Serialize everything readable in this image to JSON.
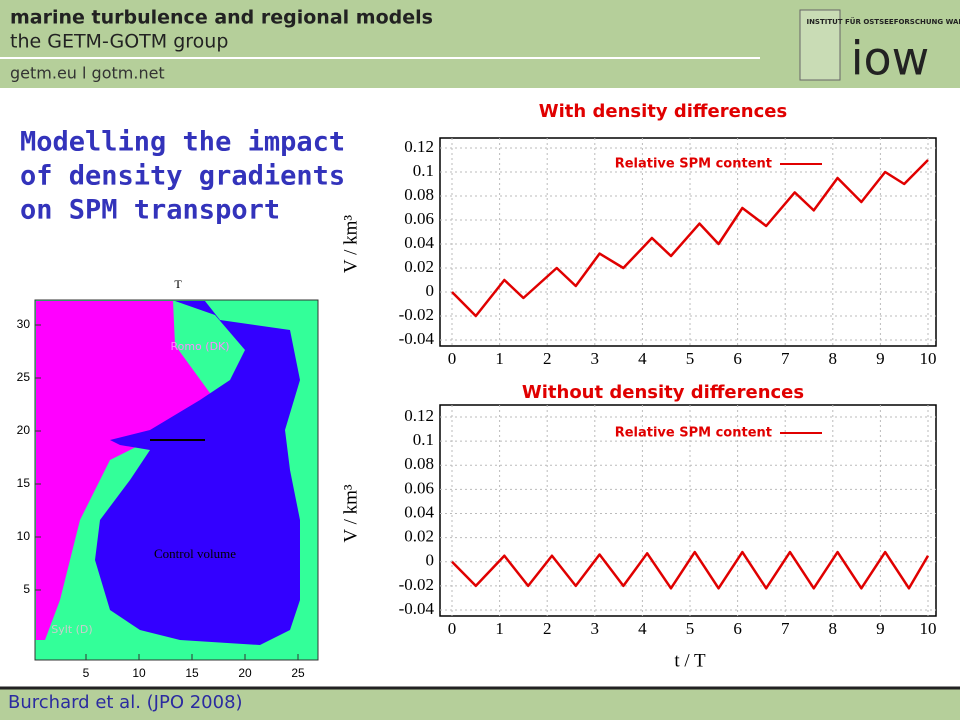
{
  "header": {
    "title": "marine turbulence and regional models",
    "subtitle": "the GETM-GOTM group",
    "links": "getm.eu l gotm.net",
    "logo_institute": "INSTITUT FÜR OSTSEEFORSCHUNG WARNEMÜNDE",
    "logo_name": "iow"
  },
  "slide_title": [
    "Modelling the impact",
    "of density gradients",
    "on SPM transport"
  ],
  "map": {
    "top_label": "T",
    "labels": [
      "Romo (DK)",
      "Sylt (D)",
      "Control volume"
    ],
    "xticks": [
      5,
      10,
      15,
      20,
      25
    ],
    "yticks": [
      5,
      10,
      15,
      20,
      25,
      30
    ]
  },
  "chart_data": [
    {
      "type": "line",
      "title": "With density differences",
      "ylabel": "V / km³",
      "x": [
        0,
        0.5,
        1.1,
        1.5,
        2.2,
        2.6,
        3.1,
        3.6,
        4.2,
        4.6,
        5.2,
        5.6,
        6.1,
        6.6,
        7.2,
        7.6,
        8.1,
        8.6,
        9.1,
        9.5,
        10
      ],
      "series": [
        {
          "name": "Relative SPM content",
          "color": "#e00000",
          "values": [
            0,
            -0.02,
            0.01,
            -0.005,
            0.02,
            0.005,
            0.032,
            0.02,
            0.045,
            0.03,
            0.057,
            0.04,
            0.07,
            0.055,
            0.083,
            0.068,
            0.095,
            0.075,
            0.1,
            0.09,
            0.11
          ]
        }
      ],
      "xlim": [
        0,
        10
      ],
      "xticks": [
        0,
        1,
        2,
        3,
        4,
        5,
        6,
        7,
        8,
        9,
        10
      ],
      "ylim": [
        -0.04,
        0.12
      ],
      "yticks": [
        -0.04,
        -0.02,
        0,
        0.02,
        0.04,
        0.06,
        0.08,
        0.1,
        0.12
      ],
      "grid": true
    },
    {
      "type": "line",
      "title": "Without density differences",
      "ylabel": "V / km³",
      "xlabel": "t / T",
      "x": [
        0,
        0.5,
        1.1,
        1.6,
        2.1,
        2.6,
        3.1,
        3.6,
        4.1,
        4.6,
        5.1,
        5.6,
        6.1,
        6.6,
        7.1,
        7.6,
        8.1,
        8.6,
        9.1,
        9.6,
        10
      ],
      "series": [
        {
          "name": "Relative SPM content",
          "color": "#e00000",
          "values": [
            0,
            -0.02,
            0.005,
            -0.02,
            0.005,
            -0.02,
            0.006,
            -0.02,
            0.007,
            -0.022,
            0.008,
            -0.022,
            0.008,
            -0.022,
            0.008,
            -0.022,
            0.008,
            -0.022,
            0.008,
            -0.022,
            0.005
          ]
        }
      ],
      "xlim": [
        0,
        10
      ],
      "xticks": [
        0,
        1,
        2,
        3,
        4,
        5,
        6,
        7,
        8,
        9,
        10
      ],
      "ylim": [
        -0.04,
        0.12
      ],
      "yticks": [
        -0.04,
        -0.02,
        0,
        0.02,
        0.04,
        0.06,
        0.08,
        0.1,
        0.12
      ],
      "grid": true
    }
  ],
  "footer": "Burchard et al. (JPO 2008)"
}
